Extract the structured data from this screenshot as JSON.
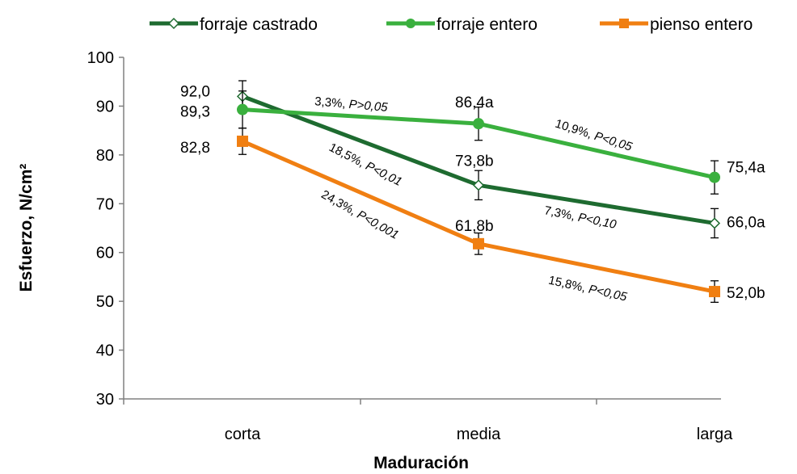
{
  "chart_data": {
    "type": "line",
    "categories": [
      "corta",
      "media",
      "larga"
    ],
    "xlabel": "Maduración",
    "ylabel": "Esfuerzo, N/cm²",
    "ylim": [
      30,
      100
    ],
    "yticks": [
      "30",
      "40",
      "50",
      "60",
      "70",
      "80",
      "90",
      "100"
    ],
    "grid": false,
    "legend_position": "top",
    "series": [
      {
        "name": "forraje castrado",
        "color": "#1e6b30",
        "marker": "diamond-open",
        "values": [
          92.0,
          73.8,
          66.0
        ],
        "errors": [
          3.2,
          3.0,
          3.0
        ],
        "labels": [
          "92,0",
          "73,8b",
          "66,0a"
        ]
      },
      {
        "name": "forraje entero",
        "color": "#3ab03e",
        "marker": "circle",
        "values": [
          89.3,
          86.4,
          75.4
        ],
        "errors": [
          3.8,
          3.4,
          3.4
        ],
        "labels": [
          "89,3",
          "86,4a",
          "75,4a"
        ]
      },
      {
        "name": "pienso entero",
        "color": "#f07f12",
        "marker": "square",
        "values": [
          82.8,
          61.8,
          52.0
        ],
        "errors": [
          2.7,
          2.2,
          2.2
        ],
        "labels": [
          "82,8",
          "61,8b",
          "52,0b"
        ]
      }
    ],
    "annotations": [
      {
        "text": "3,3%, P>0,05",
        "pct": "3,3%, ",
        "p": "P>0,05"
      },
      {
        "text": "10,9%, P<0,05",
        "pct": "10,9%, ",
        "p": "P<0,05"
      },
      {
        "text": "18,5%, P<0,01",
        "pct": "18,5%, ",
        "p": "P<0,01"
      },
      {
        "text": "7,3%, P<0,10",
        "pct": "7,3%, ",
        "p": "P<0,10"
      },
      {
        "text": "24,3%, P<0,001",
        "pct": "24,3%, ",
        "p": "P<0,001"
      },
      {
        "text": "15,8%, P<0,05",
        "pct": "15,8%, ",
        "p": "P<0,05"
      }
    ]
  }
}
